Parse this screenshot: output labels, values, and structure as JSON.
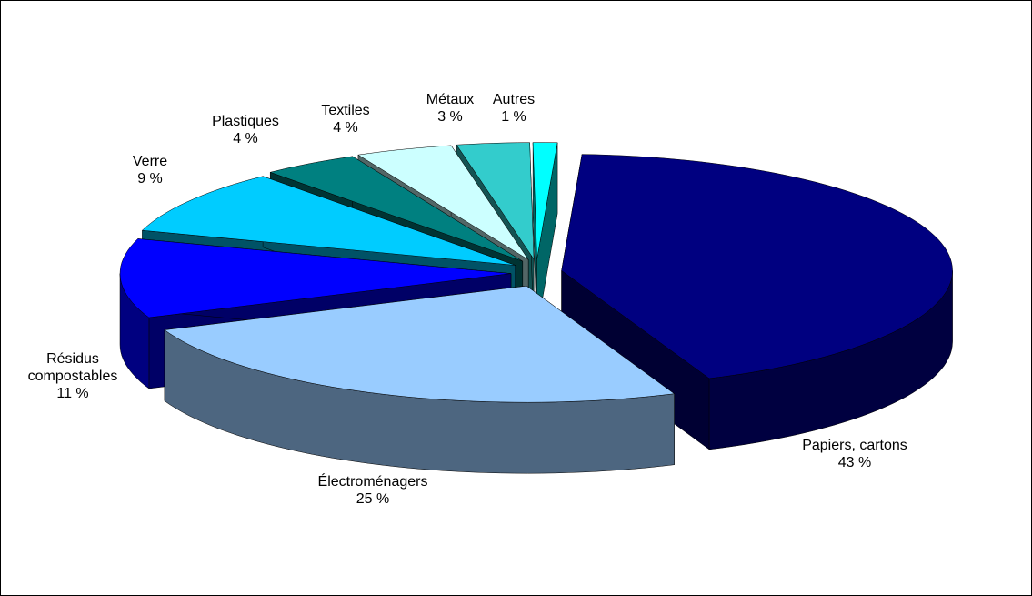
{
  "chart_data": {
    "type": "pie3d",
    "categories": [
      "Papiers, cartons",
      "Électroménagers",
      "Résidus compostables",
      "Verre",
      "Plastiques",
      "Textiles",
      "Métaux",
      "Autres"
    ],
    "values": [
      43,
      25,
      11,
      9,
      4,
      4,
      3,
      1
    ],
    "value_labels": [
      "43 %",
      "25 %",
      "11 %",
      "9 %",
      "4 %",
      "4 %",
      "3 %",
      "1 %"
    ],
    "colors": [
      "#000080",
      "#99ccff",
      "#0000ff",
      "#00ccff",
      "#008080",
      "#ccffff",
      "#33cccc",
      "#00ffff"
    ]
  }
}
